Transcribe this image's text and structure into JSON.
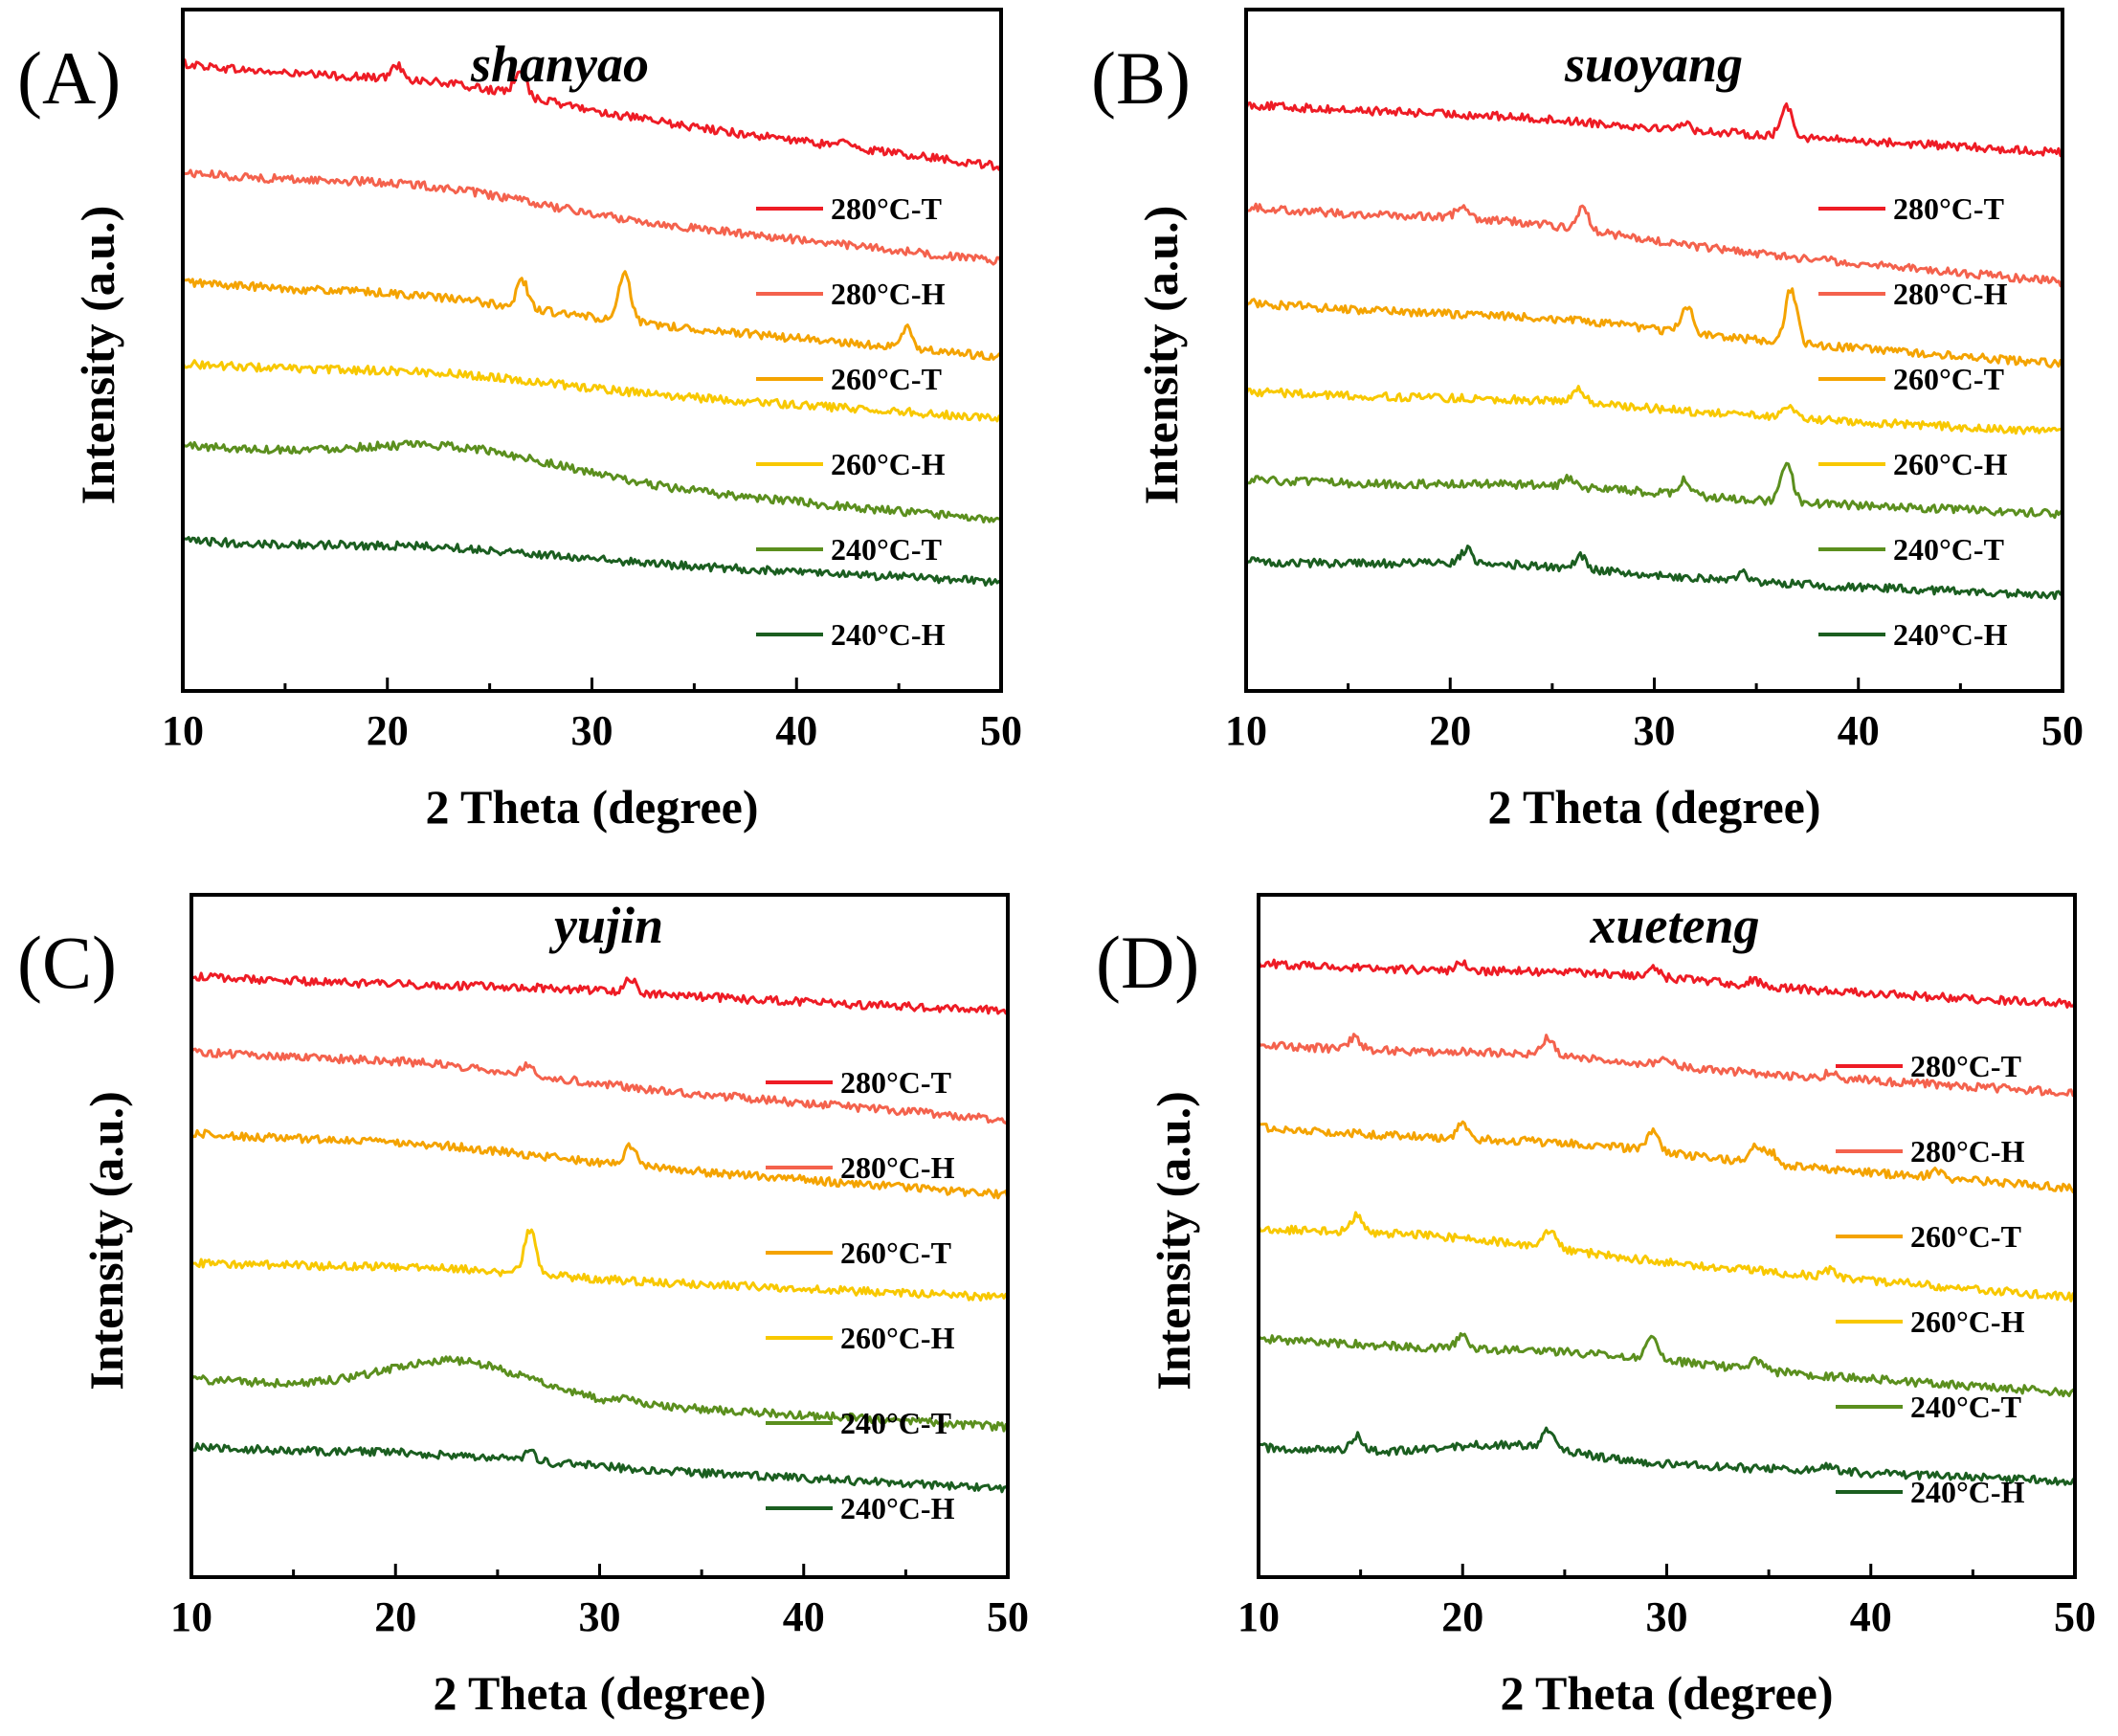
{
  "colors": {
    "280°C-T": "#ee1c25",
    "280°C-H": "#f4624d",
    "260°C-T": "#f4a300",
    "260°C-H": "#f8c800",
    "240°C-T": "#5b8f1e",
    "240°C-H": "#1b5e20"
  },
  "chart_data": [
    {
      "type": "line",
      "panel": "(A)",
      "title": "shanyao",
      "xlabel": "2 Theta (degree)",
      "ylabel": "Intensity (a.u.)",
      "xlim": [
        10,
        50
      ],
      "xticks": [
        10,
        20,
        30,
        40,
        50
      ],
      "ylim": [
        0,
        1
      ],
      "legend_position": "right",
      "series": [
        {
          "name": "280°C-T",
          "start": 0.92,
          "end": 0.77,
          "hump": {
            "center": 23,
            "width": 5,
            "height": 0.02
          },
          "peaks": [
            {
              "x": 20.5,
              "h": 0.02
            },
            {
              "x": 26.5,
              "h": 0.04
            },
            {
              "x": 42.2,
              "h": 0.008
            }
          ]
        },
        {
          "name": "280°C-H",
          "start": 0.76,
          "end": 0.63,
          "hump": {
            "center": 22,
            "width": 5,
            "height": 0.02
          },
          "peaks": []
        },
        {
          "name": "260°C-T",
          "start": 0.6,
          "end": 0.49,
          "hump": {
            "center": 22,
            "width": 5,
            "height": 0.012
          },
          "peaks": [
            {
              "x": 26.6,
              "h": 0.04
            },
            {
              "x": 31.6,
              "h": 0.07
            },
            {
              "x": 45.4,
              "h": 0.03
            }
          ]
        },
        {
          "name": "260°C-H",
          "start": 0.48,
          "end": 0.4,
          "hump": {
            "center": 23,
            "width": 5,
            "height": 0.012
          },
          "peaks": []
        },
        {
          "name": "240°C-T",
          "start": 0.36,
          "end": 0.25,
          "hump": {
            "center": 23.5,
            "width": 5,
            "height": 0.035
          },
          "peaks": []
        },
        {
          "name": "240°C-H",
          "start": 0.22,
          "end": 0.16,
          "hump": {
            "center": 23,
            "width": 5,
            "height": 0.01
          },
          "peaks": []
        }
      ]
    },
    {
      "type": "line",
      "panel": "(B)",
      "title": "suoyang",
      "xlabel": "2 Theta (degree)",
      "ylabel": "Intensity (a.u.)",
      "xlim": [
        10,
        50
      ],
      "xticks": [
        10,
        20,
        30,
        40,
        50
      ],
      "ylim": [
        0,
        1
      ],
      "legend_position": "right",
      "series": [
        {
          "name": "280°C-T",
          "start": 0.86,
          "end": 0.79,
          "hump": {
            "center": 23,
            "width": 5,
            "height": 0.005
          },
          "peaks": [
            {
              "x": 31.4,
              "h": 0.01
            },
            {
              "x": 36.5,
              "h": 0.045
            }
          ]
        },
        {
          "name": "280°C-H",
          "start": 0.71,
          "end": 0.6,
          "hump": {
            "center": 23,
            "width": 5,
            "height": 0.015
          },
          "peaks": [
            {
              "x": 20.6,
              "h": 0.02
            },
            {
              "x": 26.5,
              "h": 0.035
            }
          ]
        },
        {
          "name": "260°C-T",
          "start": 0.57,
          "end": 0.48,
          "hump": {
            "center": 25,
            "width": 5,
            "height": 0.01
          },
          "peaks": [
            {
              "x": 31.6,
              "h": 0.04
            },
            {
              "x": 36.7,
              "h": 0.08
            }
          ]
        },
        {
          "name": "260°C-H",
          "start": 0.44,
          "end": 0.38,
          "hump": {
            "center": 25,
            "width": 5,
            "height": 0.008
          },
          "peaks": [
            {
              "x": 26.3,
              "h": 0.02
            },
            {
              "x": 36.5,
              "h": 0.018
            }
          ]
        },
        {
          "name": "240°C-T",
          "start": 0.31,
          "end": 0.26,
          "hump": {
            "center": 25,
            "width": 5,
            "height": 0.01
          },
          "peaks": [
            {
              "x": 25.8,
              "h": 0.012
            },
            {
              "x": 31.5,
              "h": 0.022
            },
            {
              "x": 36.5,
              "h": 0.055
            }
          ]
        },
        {
          "name": "240°C-H",
          "start": 0.19,
          "end": 0.14,
          "hump": {
            "center": 23,
            "width": 5,
            "height": 0.012
          },
          "peaks": [
            {
              "x": 20.8,
              "h": 0.02
            },
            {
              "x": 26.4,
              "h": 0.02
            },
            {
              "x": 34.4,
              "h": 0.012
            }
          ]
        }
      ]
    },
    {
      "type": "line",
      "panel": "(C)",
      "title": "yujin",
      "xlabel": "2 Theta (degree)",
      "ylabel": "Intensity (a.u.)",
      "xlim": [
        10,
        50
      ],
      "xticks": [
        10,
        20,
        30,
        40,
        50
      ],
      "ylim": [
        0,
        1
      ],
      "legend_position": "right",
      "series": [
        {
          "name": "280°C-T",
          "start": 0.88,
          "end": 0.83,
          "hump": {
            "center": 28,
            "width": 5,
            "height": 0.005
          },
          "peaks": [
            {
              "x": 31.5,
              "h": 0.02
            }
          ]
        },
        {
          "name": "280°C-H",
          "start": 0.77,
          "end": 0.67,
          "hump": {
            "center": 22,
            "width": 5,
            "height": 0.012
          },
          "peaks": [
            {
              "x": 26.5,
              "h": 0.015
            }
          ]
        },
        {
          "name": "260°C-T",
          "start": 0.65,
          "end": 0.56,
          "hump": {
            "center": 22,
            "width": 5,
            "height": 0.01
          },
          "peaks": [
            {
              "x": 31.5,
              "h": 0.03
            }
          ]
        },
        {
          "name": "260°C-H",
          "start": 0.46,
          "end": 0.41,
          "hump": {
            "center": 22,
            "width": 5,
            "height": 0.008
          },
          "peaks": [
            {
              "x": 26.6,
              "h": 0.065
            }
          ]
        },
        {
          "name": "240°C-T",
          "start": 0.29,
          "end": 0.22,
          "hump": {
            "center": 23,
            "width": 3.5,
            "height": 0.05
          },
          "peaks": [
            {
              "x": 31.5,
              "h": 0.01
            }
          ]
        },
        {
          "name": "240°C-H",
          "start": 0.19,
          "end": 0.13,
          "hump": {
            "center": 22,
            "width": 5,
            "height": 0.008
          },
          "peaks": [
            {
              "x": 26.6,
              "h": 0.012
            }
          ]
        }
      ]
    },
    {
      "type": "line",
      "panel": "(D)",
      "title": "xueteng",
      "xlabel": "2 Theta (degree)",
      "ylabel": "Intensity (a.u.)",
      "xlim": [
        10,
        50
      ],
      "xticks": [
        10,
        20,
        30,
        40,
        50
      ],
      "ylim": [
        0,
        1
      ],
      "legend_position": "right",
      "series": [
        {
          "name": "280°C-T",
          "start": 0.9,
          "end": 0.84,
          "hump": {
            "center": 27,
            "width": 5,
            "height": 0.01
          },
          "peaks": [
            {
              "x": 20.0,
              "h": 0.012
            },
            {
              "x": 29.3,
              "h": 0.014
            },
            {
              "x": 34.3,
              "h": 0.008
            }
          ]
        },
        {
          "name": "280°C-H",
          "start": 0.78,
          "end": 0.71,
          "hump": {
            "center": 24,
            "width": 5,
            "height": 0.01
          },
          "peaks": [
            {
              "x": 14.7,
              "h": 0.018
            },
            {
              "x": 24.2,
              "h": 0.025
            },
            {
              "x": 30.0,
              "h": 0.008
            },
            {
              "x": 38.0,
              "h": 0.008
            }
          ]
        },
        {
          "name": "260°C-T",
          "start": 0.66,
          "end": 0.57,
          "hump": {
            "center": 26,
            "width": 5,
            "height": 0.01
          },
          "peaks": [
            {
              "x": 20.0,
              "h": 0.022
            },
            {
              "x": 29.3,
              "h": 0.03
            },
            {
              "x": 34.4,
              "h": 0.025
            },
            {
              "x": 35.1,
              "h": 0.018
            },
            {
              "x": 43.2,
              "h": 0.01
            }
          ]
        },
        {
          "name": "260°C-H",
          "start": 0.51,
          "end": 0.41,
          "hump": {
            "center": 20,
            "width": 5,
            "height": 0.012
          },
          "peaks": [
            {
              "x": 14.8,
              "h": 0.025
            },
            {
              "x": 24.3,
              "h": 0.025
            },
            {
              "x": 38.0,
              "h": 0.01
            }
          ]
        },
        {
          "name": "240°C-T",
          "start": 0.35,
          "end": 0.27,
          "hump": {
            "center": 26,
            "width": 5,
            "height": 0.01
          },
          "peaks": [
            {
              "x": 20.0,
              "h": 0.022
            },
            {
              "x": 29.3,
              "h": 0.03
            },
            {
              "x": 34.4,
              "h": 0.015
            }
          ]
        },
        {
          "name": "240°C-H",
          "start": 0.19,
          "end": 0.14,
          "hump": {
            "center": 22.5,
            "width": 3,
            "height": 0.02
          },
          "peaks": [
            {
              "x": 14.8,
              "h": 0.022
            },
            {
              "x": 24.2,
              "h": 0.025
            },
            {
              "x": 38.0,
              "h": 0.01
            }
          ]
        }
      ]
    }
  ]
}
